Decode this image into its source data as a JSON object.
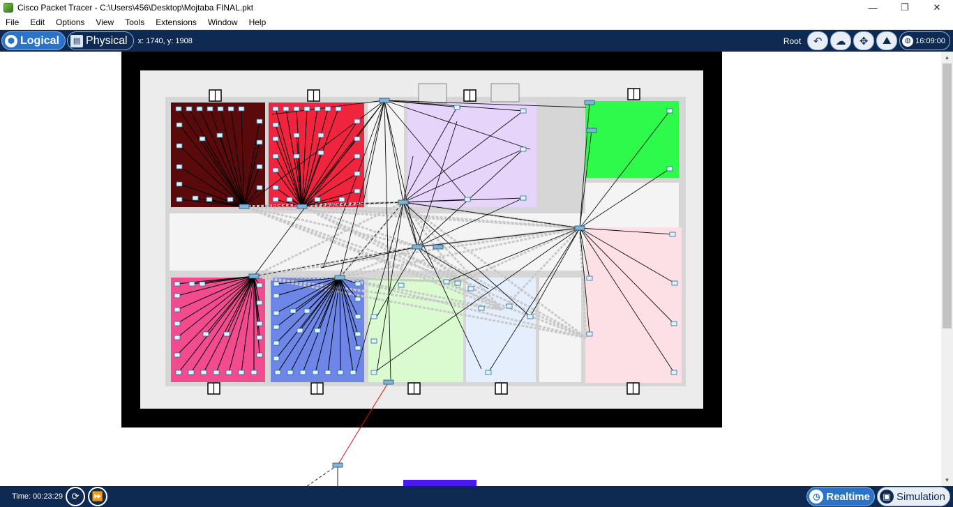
{
  "window": {
    "title": "Cisco Packet Tracer - C:\\Users\\456\\Desktop\\Mojtaba FINAL.pkt",
    "minimize_glyph": "—",
    "maximize_glyph": "❐",
    "close_glyph": "✕"
  },
  "menu": {
    "items": [
      "File",
      "Edit",
      "Options",
      "View",
      "Tools",
      "Extensions",
      "Window",
      "Help"
    ]
  },
  "toolbar": {
    "logical_label": "Logical",
    "physical_label": "Physical",
    "coordinates": "x: 1740, y: 1908",
    "root_label": "Root",
    "clock": "16:09:00"
  },
  "statusbar": {
    "time": "Time: 00:23:29",
    "realtime_label": "Realtime",
    "simulation_label": "Simulation"
  },
  "colors": {
    "chrome": "#0e2a52",
    "accent": "#2a73c9",
    "room_darkred": "#5a0a0a",
    "room_red": "#f0243d",
    "room_lavender": "#e6d4fb",
    "room_green": "#2dfa4b",
    "room_pink": "#f24c8f",
    "room_blue": "#6e86e8",
    "room_lightgreen": "#d9fbcf",
    "room_lightblue": "#e4eefc",
    "room_lightpink": "#fde0e6",
    "link_red": "#e01010"
  },
  "icons": {
    "logical": "logical-view-icon",
    "physical": "physical-view-icon",
    "undo": "back-arrow-icon",
    "cloud": "cloud-icon",
    "move": "move-arrows-icon",
    "background": "background-image-icon",
    "clock": "globe-clock-icon",
    "reset": "power-cycle-icon",
    "fastforward": "fast-forward-icon",
    "realtime": "stopwatch-icon",
    "simulation": "simulation-icon"
  }
}
